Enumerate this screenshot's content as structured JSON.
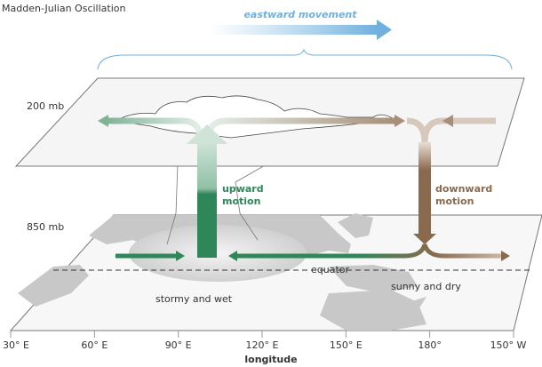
{
  "title": "Madden-Julian Oscillation",
  "movement_label": "eastward movement",
  "levels": {
    "upper": "200 mb",
    "lower": "850 mb"
  },
  "upward_label": [
    "upward",
    "motion"
  ],
  "downward_label": [
    "downward",
    "motion"
  ],
  "equator_label": "equator",
  "sunny_label": "sunny and dry",
  "stormy_label": "stormy and wet",
  "axis": {
    "label": "longitude",
    "ticks": [
      "30° E",
      "60° E",
      "90° E",
      "120° E",
      "150° E",
      "180°",
      "150° W"
    ]
  },
  "colors": {
    "upward": "#2f8659",
    "downward": "#8a6a4e",
    "movement": "#8fc3e6",
    "land": "#c8c8c8"
  }
}
